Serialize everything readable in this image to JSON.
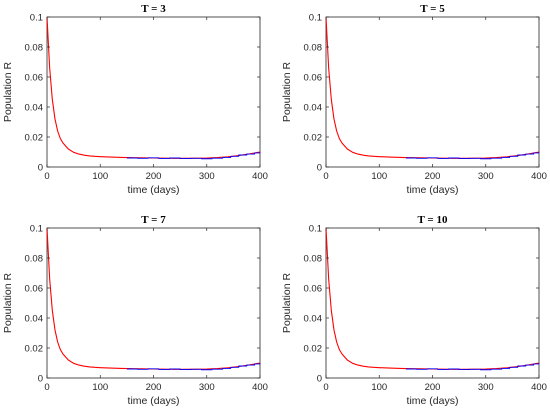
{
  "figure": {
    "background": "#ffffff"
  },
  "chart_data": [
    {
      "type": "line",
      "title": "T = 3",
      "xlabel": "time (days)",
      "ylabel": "Population R",
      "xlim": [
        0,
        400
      ],
      "ylim": [
        0,
        0.1
      ],
      "xticks": [
        "0",
        "100",
        "200",
        "300",
        "400"
      ],
      "yticks": [
        "0",
        "0.02",
        "0.04",
        "0.06",
        "0.08",
        "0.1"
      ],
      "grid": false,
      "series": [
        {
          "color": "#ff0000",
          "style": "smooth",
          "x": [
            0,
            5,
            10,
            15,
            20,
            25,
            30,
            40,
            50,
            60,
            70,
            80,
            90,
            100,
            120,
            140,
            160,
            180,
            200,
            220,
            240,
            260,
            280,
            300,
            320,
            340,
            360,
            380,
            400
          ],
          "y": [
            0.1,
            0.066,
            0.045,
            0.032,
            0.024,
            0.019,
            0.016,
            0.012,
            0.0098,
            0.0086,
            0.0079,
            0.0074,
            0.0071,
            0.0069,
            0.0066,
            0.0064,
            0.0062,
            0.0061,
            0.006,
            0.0059,
            0.0058,
            0.0058,
            0.0059,
            0.006,
            0.0063,
            0.0068,
            0.0076,
            0.0087,
            0.01
          ]
        },
        {
          "color": "#0000ff",
          "style": "steps",
          "x": [
            150,
            170,
            190,
            210,
            230,
            250,
            270,
            290,
            310,
            330,
            345,
            360,
            375,
            390,
            400
          ],
          "y": [
            0.006,
            0.0058,
            0.0061,
            0.0057,
            0.006,
            0.0056,
            0.0058,
            0.0055,
            0.0059,
            0.0064,
            0.0071,
            0.008,
            0.0086,
            0.0094,
            0.0098
          ]
        }
      ]
    },
    {
      "type": "line",
      "title": "T = 5",
      "xlabel": "time (days)",
      "ylabel": "Population R",
      "xlim": [
        0,
        400
      ],
      "ylim": [
        0,
        0.1
      ],
      "xticks": [
        "0",
        "100",
        "200",
        "300",
        "400"
      ],
      "yticks": [
        "0",
        "0.02",
        "0.04",
        "0.06",
        "0.08",
        "0.1"
      ],
      "grid": false,
      "series": [
        {
          "color": "#ff0000",
          "style": "smooth",
          "x": [
            0,
            5,
            10,
            15,
            20,
            25,
            30,
            40,
            50,
            60,
            70,
            80,
            90,
            100,
            120,
            140,
            160,
            180,
            200,
            220,
            240,
            260,
            280,
            300,
            320,
            340,
            360,
            380,
            400
          ],
          "y": [
            0.1,
            0.066,
            0.045,
            0.032,
            0.024,
            0.019,
            0.016,
            0.012,
            0.0098,
            0.0086,
            0.0079,
            0.0074,
            0.0071,
            0.0069,
            0.0066,
            0.0064,
            0.0062,
            0.0061,
            0.006,
            0.0059,
            0.0058,
            0.0058,
            0.0059,
            0.006,
            0.0063,
            0.0068,
            0.0076,
            0.0087,
            0.01
          ]
        },
        {
          "color": "#0000ff",
          "style": "steps",
          "x": [
            150,
            170,
            190,
            210,
            230,
            250,
            270,
            290,
            310,
            330,
            345,
            360,
            375,
            390,
            400
          ],
          "y": [
            0.006,
            0.0058,
            0.0061,
            0.0057,
            0.006,
            0.0056,
            0.0058,
            0.0055,
            0.0059,
            0.0064,
            0.0071,
            0.008,
            0.0086,
            0.0094,
            0.0098
          ]
        }
      ]
    },
    {
      "type": "line",
      "title": "T = 7",
      "xlabel": "time (days)",
      "ylabel": "Population R",
      "xlim": [
        0,
        400
      ],
      "ylim": [
        0,
        0.1
      ],
      "xticks": [
        "0",
        "100",
        "200",
        "300",
        "400"
      ],
      "yticks": [
        "0",
        "0.02",
        "0.04",
        "0.06",
        "0.08",
        "0.1"
      ],
      "grid": false,
      "series": [
        {
          "color": "#ff0000",
          "style": "smooth",
          "x": [
            0,
            5,
            10,
            15,
            20,
            25,
            30,
            40,
            50,
            60,
            70,
            80,
            90,
            100,
            120,
            140,
            160,
            180,
            200,
            220,
            240,
            260,
            280,
            300,
            320,
            340,
            360,
            380,
            400
          ],
          "y": [
            0.1,
            0.066,
            0.045,
            0.032,
            0.024,
            0.019,
            0.016,
            0.012,
            0.0098,
            0.0086,
            0.0079,
            0.0074,
            0.0071,
            0.0069,
            0.0066,
            0.0064,
            0.0062,
            0.0061,
            0.006,
            0.0059,
            0.0058,
            0.0058,
            0.0059,
            0.006,
            0.0063,
            0.0068,
            0.0076,
            0.0087,
            0.01
          ]
        },
        {
          "color": "#0000ff",
          "style": "steps",
          "x": [
            150,
            170,
            190,
            210,
            230,
            250,
            270,
            290,
            310,
            330,
            345,
            360,
            375,
            390,
            400
          ],
          "y": [
            0.006,
            0.0058,
            0.0061,
            0.0057,
            0.006,
            0.0056,
            0.0058,
            0.0055,
            0.0059,
            0.0064,
            0.0071,
            0.008,
            0.0086,
            0.0094,
            0.0098
          ]
        }
      ]
    },
    {
      "type": "line",
      "title": "T = 10",
      "xlabel": "time (days)",
      "ylabel": "Population R",
      "xlim": [
        0,
        400
      ],
      "ylim": [
        0,
        0.1
      ],
      "xticks": [
        "0",
        "100",
        "200",
        "300",
        "400"
      ],
      "yticks": [
        "0",
        "0.02",
        "0.04",
        "0.06",
        "0.08",
        "0.1"
      ],
      "grid": false,
      "series": [
        {
          "color": "#ff0000",
          "style": "smooth",
          "x": [
            0,
            5,
            10,
            15,
            20,
            25,
            30,
            40,
            50,
            60,
            70,
            80,
            90,
            100,
            120,
            140,
            160,
            180,
            200,
            220,
            240,
            260,
            280,
            300,
            320,
            340,
            360,
            380,
            400
          ],
          "y": [
            0.1,
            0.066,
            0.045,
            0.032,
            0.024,
            0.019,
            0.016,
            0.012,
            0.0098,
            0.0086,
            0.0079,
            0.0074,
            0.0071,
            0.0069,
            0.0066,
            0.0064,
            0.0062,
            0.0061,
            0.006,
            0.0059,
            0.0058,
            0.0058,
            0.0059,
            0.006,
            0.0063,
            0.0068,
            0.0076,
            0.0087,
            0.01
          ]
        },
        {
          "color": "#0000ff",
          "style": "steps",
          "x": [
            150,
            170,
            190,
            210,
            230,
            250,
            270,
            290,
            310,
            330,
            345,
            360,
            375,
            390,
            400
          ],
          "y": [
            0.006,
            0.0058,
            0.0061,
            0.0057,
            0.006,
            0.0056,
            0.0058,
            0.0055,
            0.0059,
            0.0064,
            0.0071,
            0.008,
            0.0086,
            0.0094,
            0.0098
          ]
        }
      ]
    }
  ]
}
